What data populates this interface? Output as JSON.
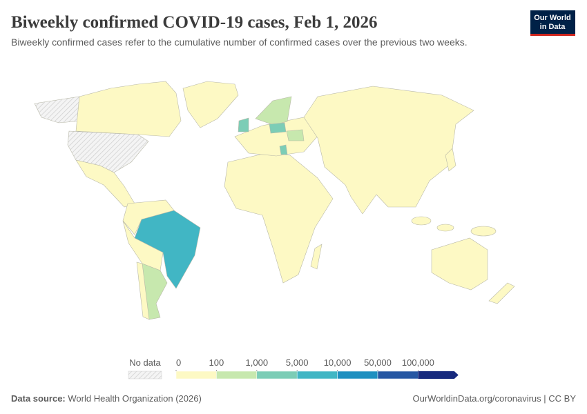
{
  "header": {
    "title": "Biweekly confirmed COVID-19 cases, Feb 1, 2026",
    "subtitle": "Biweekly confirmed cases refer to the cumulative number of confirmed cases over the previous two weeks.",
    "logo": [
      "Our World",
      "in Data"
    ]
  },
  "legend": {
    "no_data_label": "No data",
    "ticks": [
      0,
      100,
      {
        "value": 1000,
        "label": "1,000"
      },
      {
        "value": 5000,
        "label": "5,000"
      },
      {
        "value": 10000,
        "label": "10,000"
      },
      {
        "value": 50000,
        "label": "50,000"
      },
      {
        "value": 100000,
        "label": "100,000"
      }
    ],
    "colors": [
      "#fdf9c4",
      "#c7e8ae",
      "#7ccdb6",
      "#41b6c4",
      "#1f90c0",
      "#2657a3",
      "#172a7e"
    ]
  },
  "footer": {
    "source_label": "Data source:",
    "source": "World Health Organization (2026)",
    "link": "OurWorldinData.org/coronavirus | CC BY"
  }
}
